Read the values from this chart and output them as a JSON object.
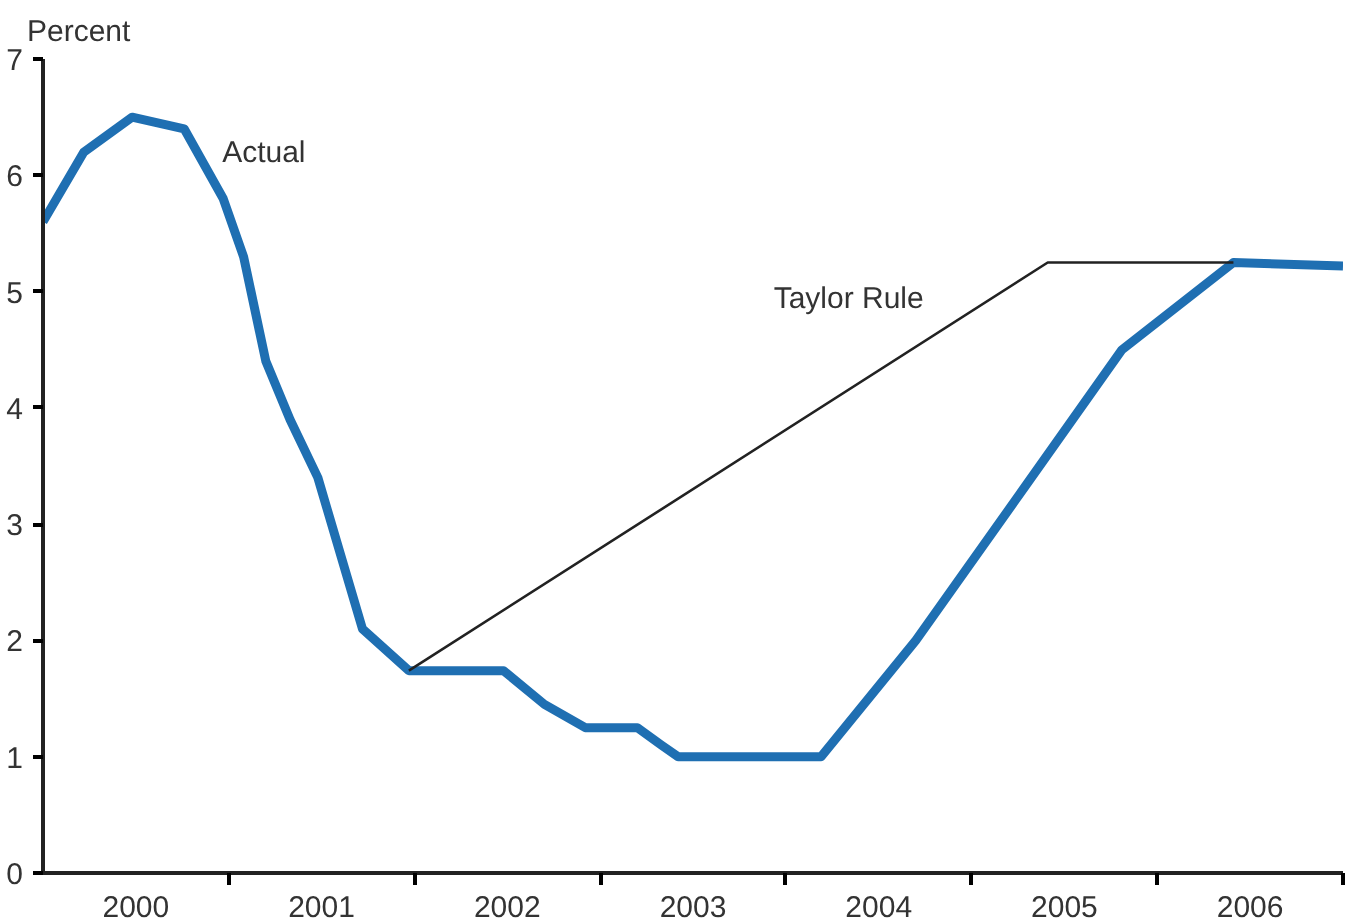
{
  "chart_data": {
    "type": "line",
    "ylabel": "Percent",
    "xlim": [
      2000,
      2007
    ],
    "ylim": [
      0,
      7
    ],
    "yticks": [
      0,
      1,
      2,
      3,
      4,
      5,
      6,
      7
    ],
    "xticks": [
      {
        "value": 2001,
        "label": null
      },
      {
        "value": 2002,
        "label": null
      },
      {
        "value": 2003,
        "label": null
      },
      {
        "value": 2004,
        "label": null
      },
      {
        "value": 2005,
        "label": null
      },
      {
        "value": 2006,
        "label": null
      },
      {
        "value": 2007,
        "label": null
      },
      {
        "value": 2000.5,
        "label": "2000"
      },
      {
        "value": 2001.5,
        "label": "2001"
      },
      {
        "value": 2002.5,
        "label": "2002"
      },
      {
        "value": 2003.5,
        "label": "2003"
      },
      {
        "value": 2004.5,
        "label": "2004"
      },
      {
        "value": 2005.5,
        "label": "2005"
      },
      {
        "value": 2006.5,
        "label": "2006"
      }
    ],
    "grid": false,
    "legend": false,
    "marker": "none",
    "line_style": "solid",
    "series": [
      {
        "name": "Actual",
        "color": "#1f6fb2",
        "x": [
          2000.0,
          2000.22,
          2000.48,
          2000.76,
          2000.97,
          2001.08,
          2001.2,
          2001.33,
          2001.48,
          2001.72,
          2001.97,
          2002.48,
          2002.7,
          2002.92,
          2003.2,
          2003.33,
          2003.42,
          2004.19,
          2004.7,
          2005.3,
          2005.81,
          2006.41,
          2007.0
        ],
        "values": [
          5.6,
          6.2,
          6.5,
          6.4,
          5.8,
          5.3,
          4.4,
          3.9,
          3.4,
          2.1,
          1.74,
          1.74,
          1.45,
          1.25,
          1.25,
          1.1,
          1.0,
          1.0,
          2.0,
          3.35,
          4.5,
          5.25,
          5.22
        ]
      },
      {
        "name": "Taylor Rule",
        "color": "#222222",
        "x": [
          2001.97,
          2005.41,
          2006.41
        ],
        "values": [
          1.74,
          5.25,
          5.25
        ]
      }
    ]
  }
}
